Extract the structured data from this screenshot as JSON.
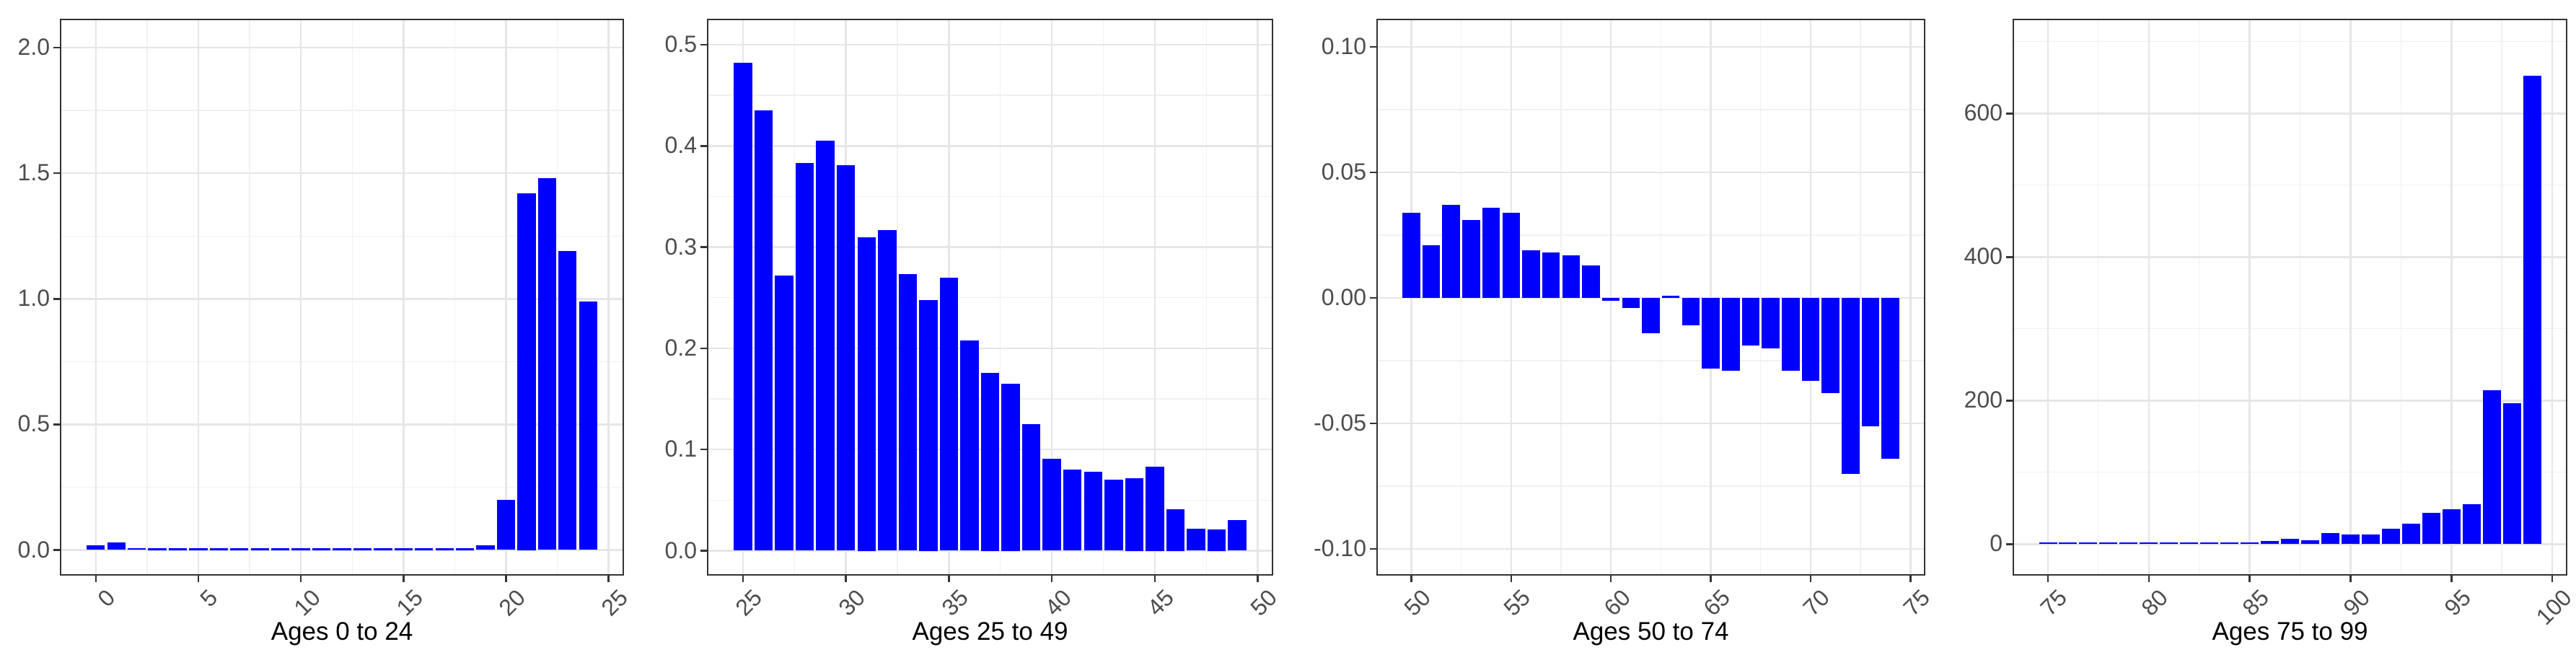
{
  "figure": {
    "bar_color": "#0000FF",
    "panel_background": "#FFFFFF",
    "panel_border_color": "#333333",
    "grid_major_color": "#E6E6E6",
    "grid_minor_color": "#F1F1F1",
    "tick_mark_color": "#333333",
    "tick_label_color": "#4D4D4D",
    "axis_title_color": "#000000"
  },
  "chart_data": [
    {
      "type": "bar",
      "title": "",
      "xlabel": "Ages 0 to 24",
      "ylabel": "",
      "x": [
        0,
        1,
        2,
        3,
        4,
        5,
        6,
        7,
        8,
        9,
        10,
        11,
        12,
        13,
        14,
        15,
        16,
        17,
        18,
        19,
        20,
        21,
        22,
        23,
        24
      ],
      "values": [
        0.018,
        0.03,
        0.008,
        0.006,
        0.003,
        0.003,
        0.003,
        0.003,
        0.003,
        0.003,
        0.003,
        0.003,
        0.003,
        0.003,
        0.003,
        0.003,
        0.003,
        0.003,
        0.006,
        0.018,
        0.2,
        1.42,
        1.48,
        1.19,
        0.99
      ],
      "xticks": [
        0,
        5,
        10,
        15,
        20,
        25
      ],
      "xtick_labels": [
        "0",
        "5",
        "10",
        "15",
        "20",
        "25"
      ],
      "yticks": [
        0.0,
        0.5,
        1.0,
        1.5,
        2.0
      ],
      "ytick_labels": [
        "0.0",
        "0.5",
        "1.0",
        "1.5",
        "2.0"
      ],
      "xlim": [
        -1.75,
        25.75
      ],
      "ylim": [
        -0.102,
        2.115
      ],
      "grid": true,
      "legend": "none"
    },
    {
      "type": "bar",
      "title": "",
      "xlabel": "Ages 25 to 49",
      "ylabel": "",
      "x": [
        25,
        26,
        27,
        28,
        29,
        30,
        31,
        32,
        33,
        34,
        35,
        36,
        37,
        38,
        39,
        40,
        41,
        42,
        43,
        44,
        45,
        46,
        47,
        48,
        49
      ],
      "values": [
        0.482,
        0.435,
        0.272,
        0.383,
        0.405,
        0.381,
        0.31,
        0.317,
        0.273,
        0.248,
        0.27,
        0.208,
        0.176,
        0.165,
        0.125,
        0.091,
        0.08,
        0.078,
        0.07,
        0.072,
        0.083,
        0.041,
        0.022,
        0.021,
        0.03
      ],
      "xticks": [
        25,
        30,
        35,
        40,
        45,
        50
      ],
      "xtick_labels": [
        "25",
        "30",
        "35",
        "40",
        "45",
        "50"
      ],
      "yticks": [
        0.0,
        0.1,
        0.2,
        0.3,
        0.4,
        0.5
      ],
      "ytick_labels": [
        "0.0",
        "0.1",
        "0.2",
        "0.3",
        "0.4",
        "0.5"
      ],
      "xlim": [
        23.25,
        50.75
      ],
      "ylim": [
        -0.0246,
        0.5256
      ],
      "grid": true,
      "legend": "none"
    },
    {
      "type": "bar",
      "title": "",
      "xlabel": "Ages 50 to 74",
      "ylabel": "",
      "x": [
        50,
        51,
        52,
        53,
        54,
        55,
        56,
        57,
        58,
        59,
        60,
        61,
        62,
        63,
        64,
        65,
        66,
        67,
        68,
        69,
        70,
        71,
        72,
        73,
        74
      ],
      "values": [
        0.034,
        0.021,
        0.037,
        0.031,
        0.036,
        0.034,
        0.019,
        0.018,
        0.017,
        0.013,
        -0.001,
        -0.004,
        -0.014,
        0.001,
        -0.011,
        -0.028,
        -0.029,
        -0.019,
        -0.02,
        -0.029,
        -0.033,
        -0.038,
        -0.07,
        -0.051,
        -0.064
      ],
      "xticks": [
        50,
        55,
        60,
        65,
        70,
        75
      ],
      "xtick_labels": [
        "50",
        "55",
        "60",
        "65",
        "70",
        "75"
      ],
      "yticks": [
        -0.1,
        -0.05,
        0.0,
        0.05,
        0.1
      ],
      "ytick_labels": [
        "-0.10",
        "-0.05",
        "0.00",
        "0.05",
        "0.10"
      ],
      "xlim": [
        48.25,
        75.75
      ],
      "ylim": [
        -0.1106,
        0.1112
      ],
      "grid": true,
      "legend": "none"
    },
    {
      "type": "bar",
      "title": "",
      "xlabel": "Ages 75 to 99",
      "ylabel": "",
      "x": [
        75,
        76,
        77,
        78,
        79,
        80,
        81,
        82,
        83,
        84,
        85,
        86,
        87,
        88,
        89,
        90,
        91,
        92,
        93,
        94,
        95,
        96,
        97,
        98,
        99
      ],
      "values": [
        1,
        1,
        1,
        1,
        1,
        1,
        1,
        1,
        2.5,
        1,
        1,
        4,
        7,
        5,
        15,
        13,
        13,
        21,
        28,
        43,
        49,
        56,
        214,
        196,
        653
      ],
      "xticks": [
        75,
        80,
        85,
        90,
        95,
        100
      ],
      "xtick_labels": [
        "75",
        "80",
        "85",
        "90",
        "95",
        "100"
      ],
      "yticks": [
        0,
        200,
        400,
        600
      ],
      "ytick_labels": [
        "0",
        "200",
        "400",
        "600"
      ],
      "xlim": [
        73.25,
        100.75
      ],
      "ylim": [
        -44,
        732
      ],
      "grid": true,
      "legend": "none"
    }
  ]
}
